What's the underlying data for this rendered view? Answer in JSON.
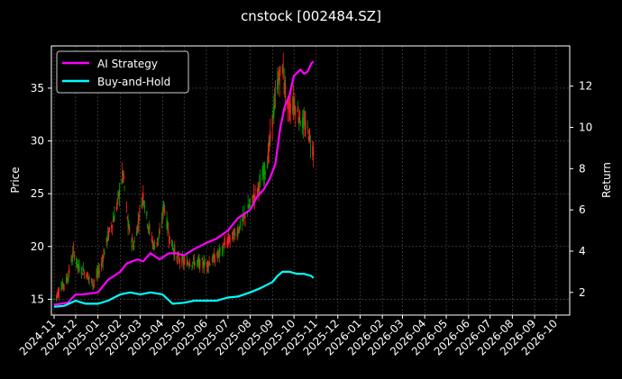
{
  "chart_data": {
    "type": "line",
    "title": "cnstock [002484.SZ]",
    "ylabel": "Price",
    "y2label": "Return",
    "x_tick_labels": [
      "2024-11",
      "2024-12",
      "2025-01",
      "2025-02",
      "2025-03",
      "2025-04",
      "2025-05",
      "2025-06",
      "2025-07",
      "2025-08",
      "2025-09",
      "2025-10",
      "2025-11",
      "2025-12",
      "2026-01",
      "2026-02",
      "2026-03",
      "2026-04",
      "2026-05",
      "2026-06",
      "2026-07",
      "2026-08",
      "2026-09",
      "2026-10"
    ],
    "ylim": [
      13.5,
      39.0
    ],
    "y_ticks": [
      15,
      20,
      25,
      30,
      35
    ],
    "y2lim": [
      0.9,
      13.95
    ],
    "y2_ticks": [
      2,
      4,
      6,
      8,
      10,
      12
    ],
    "grid": true,
    "legend_position": "top-left",
    "colors": {
      "background": "#000000",
      "grid": "#555555",
      "up": "#00a000",
      "down": "#ff2020"
    },
    "price_anchors": {
      "x": [
        "2024-11-01",
        "2024-11-10",
        "2024-11-20",
        "2024-11-28",
        "2024-12-05",
        "2024-12-15",
        "2024-12-25",
        "2025-01-05",
        "2025-01-15",
        "2025-01-25",
        "2025-02-05",
        "2025-02-12",
        "2025-02-20",
        "2025-02-28",
        "2025-03-05",
        "2025-03-12",
        "2025-03-20",
        "2025-03-28",
        "2025-04-03",
        "2025-04-10",
        "2025-04-20",
        "2025-05-01",
        "2025-05-15",
        "2025-06-01",
        "2025-06-15",
        "2025-07-01",
        "2025-07-15",
        "2025-08-01",
        "2025-08-15",
        "2025-08-25",
        "2025-09-01",
        "2025-09-08",
        "2025-09-15",
        "2025-09-22",
        "2025-10-01",
        "2025-10-10",
        "2025-10-20",
        "2025-10-28"
      ],
      "y": [
        15.0,
        16.0,
        17.0,
        19.5,
        18.0,
        17.5,
        16.5,
        18.0,
        21.0,
        23.0,
        27.0,
        22.0,
        20.0,
        23.0,
        25.0,
        22.0,
        20.0,
        21.0,
        24.0,
        21.0,
        19.0,
        18.5,
        18.5,
        18.3,
        19.0,
        20.5,
        21.5,
        24.0,
        26.0,
        28.0,
        32.0,
        35.5,
        37.0,
        33.0,
        33.5,
        32.0,
        31.0,
        29.0
      ]
    },
    "series": [
      {
        "name": "AI Strategy",
        "color": "#ff00ff",
        "x": [
          "2024-11-01",
          "2024-11-20",
          "2024-12-01",
          "2024-12-10",
          "2025-01-01",
          "2025-01-15",
          "2025-02-01",
          "2025-02-10",
          "2025-02-25",
          "2025-03-05",
          "2025-03-15",
          "2025-03-28",
          "2025-04-10",
          "2025-04-20",
          "2025-05-01",
          "2025-05-15",
          "2025-06-01",
          "2025-06-15",
          "2025-07-01",
          "2025-07-15",
          "2025-08-01",
          "2025-08-10",
          "2025-08-20",
          "2025-08-28",
          "2025-09-05",
          "2025-09-12",
          "2025-09-18",
          "2025-09-25",
          "2025-10-01",
          "2025-10-10",
          "2025-10-15",
          "2025-10-20",
          "2025-10-25",
          "2025-10-28"
        ],
        "values": [
          1.4,
          1.5,
          1.9,
          1.9,
          2.0,
          2.6,
          3.0,
          3.4,
          3.6,
          3.5,
          3.9,
          3.6,
          3.9,
          3.9,
          3.8,
          4.1,
          4.4,
          4.6,
          5.0,
          5.6,
          6.0,
          6.6,
          7.0,
          7.5,
          8.2,
          10.0,
          11.0,
          11.6,
          12.5,
          12.8,
          12.6,
          12.7,
          13.1,
          13.2
        ]
      },
      {
        "name": "Buy-and-Hold",
        "color": "#00ffff",
        "x": [
          "2024-11-01",
          "2024-11-15",
          "2024-12-01",
          "2024-12-15",
          "2025-01-01",
          "2025-01-15",
          "2025-02-01",
          "2025-02-15",
          "2025-03-01",
          "2025-03-15",
          "2025-04-01",
          "2025-04-15",
          "2025-05-01",
          "2025-05-15",
          "2025-06-01",
          "2025-06-15",
          "2025-07-01",
          "2025-07-15",
          "2025-08-01",
          "2025-08-15",
          "2025-09-01",
          "2025-09-08",
          "2025-09-15",
          "2025-09-25",
          "2025-10-05",
          "2025-10-15",
          "2025-10-25",
          "2025-10-28"
        ],
        "values": [
          1.3,
          1.35,
          1.6,
          1.45,
          1.45,
          1.6,
          1.9,
          2.0,
          1.9,
          2.0,
          1.9,
          1.45,
          1.5,
          1.6,
          1.6,
          1.6,
          1.75,
          1.8,
          2.0,
          2.2,
          2.5,
          2.8,
          3.0,
          3.0,
          2.9,
          2.9,
          2.8,
          2.7
        ]
      }
    ]
  }
}
